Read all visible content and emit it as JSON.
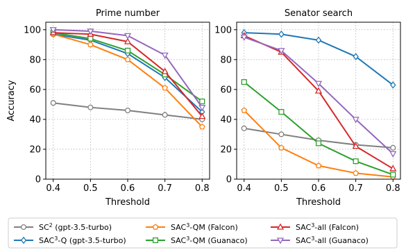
{
  "chart_data": [
    {
      "type": "line",
      "title": "Prime number",
      "xlabel": "Threshold",
      "ylabel": "Accuracy",
      "x": [
        0.4,
        0.5,
        0.6,
        0.7,
        0.8
      ],
      "xticks": [
        "0.4",
        "0.5",
        "0.6",
        "0.7",
        "0.8"
      ],
      "yticks": [
        "0",
        "20",
        "40",
        "60",
        "80",
        "100"
      ],
      "xlim": [
        0.38,
        0.82
      ],
      "ylim": [
        0,
        105
      ],
      "grid": true,
      "series": [
        {
          "key": "sc2",
          "values": [
            51,
            48,
            46,
            43,
            40
          ]
        },
        {
          "key": "sac3q",
          "values": [
            97,
            93,
            84,
            68,
            45
          ]
        },
        {
          "key": "qmfalcon",
          "values": [
            97,
            90,
            80,
            61,
            35
          ]
        },
        {
          "key": "qmguanaco",
          "values": [
            98,
            94,
            86,
            70,
            52
          ]
        },
        {
          "key": "allfalcon",
          "values": [
            98,
            97,
            92,
            72,
            42
          ]
        },
        {
          "key": "allguanaco",
          "values": [
            100,
            99,
            96,
            83,
            48
          ]
        }
      ]
    },
    {
      "type": "line",
      "title": "Senator search",
      "xlabel": "Threshold",
      "ylabel": "",
      "x": [
        0.4,
        0.5,
        0.6,
        0.7,
        0.8
      ],
      "xticks": [
        "0.4",
        "0.5",
        "0.6",
        "0.7",
        "0.8"
      ],
      "yticks": [
        "0",
        "20",
        "40",
        "60",
        "80",
        "100"
      ],
      "xlim": [
        0.38,
        0.82
      ],
      "ylim": [
        0,
        105
      ],
      "grid": true,
      "series": [
        {
          "key": "sc2",
          "values": [
            34,
            30,
            26,
            23,
            21
          ]
        },
        {
          "key": "sac3q",
          "values": [
            98,
            97,
            93,
            82,
            63
          ]
        },
        {
          "key": "qmfalcon",
          "values": [
            46,
            21,
            9,
            4,
            1.5
          ]
        },
        {
          "key": "qmguanaco",
          "values": [
            65,
            45,
            24,
            12,
            3
          ]
        },
        {
          "key": "allfalcon",
          "values": [
            96,
            85,
            59,
            22,
            7
          ]
        },
        {
          "key": "allguanaco",
          "values": [
            95,
            86,
            64,
            40,
            17
          ]
        }
      ]
    }
  ],
  "legend": {
    "placement": "bottom",
    "entries": [
      {
        "key": "sc2",
        "prefix": "SC",
        "sup": "2",
        "suffix": " (gpt-3.5-turbo)",
        "color": "#7f7f7f",
        "marker": "circle"
      },
      {
        "key": "qmfalcon",
        "prefix": "SAC",
        "sup": "3",
        "suffix": "-QM (Falcon)",
        "color": "#ff7f0e",
        "marker": "pentagon"
      },
      {
        "key": "allfalcon",
        "prefix": "SAC",
        "sup": "3",
        "suffix": "-all (Falcon)",
        "color": "#d62728",
        "marker": "triangle-up"
      },
      {
        "key": "sac3q",
        "prefix": "SAC",
        "sup": "3",
        "suffix": "-Q (gpt-3.5-turbo)",
        "color": "#1f77b4",
        "marker": "diamond"
      },
      {
        "key": "qmguanaco",
        "prefix": "SAC",
        "sup": "3",
        "suffix": "-QM (Guanaco)",
        "color": "#2ca02c",
        "marker": "square"
      },
      {
        "key": "allguanaco",
        "prefix": "SAC",
        "sup": "3",
        "suffix": "-all (Guanaco)",
        "color": "#9467bd",
        "marker": "triangle-down"
      }
    ]
  }
}
